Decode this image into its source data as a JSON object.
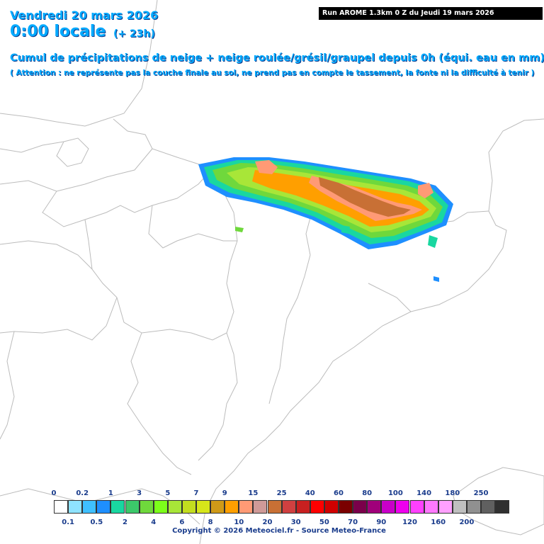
{
  "header": {
    "date": "Vendredi 20 mars 2026",
    "time": "0:00 locale",
    "lead": "(+ 23h)",
    "title": "Cumul de précipitations de neige + neige roulée/grésil/graupel depuis 0h (équi. eau en mm)",
    "warning": "( Attention : ne représente pas la couche finale au sol, ne prend pas en compte le tassement, la fonte ni la difficulté à tenir )"
  },
  "run_info": "Run AROME 1.3km 0 Z du Jeudi 19 mars 2026",
  "legend": {
    "top_labels": [
      "0",
      "0.2",
      "1",
      "3",
      "5",
      "7",
      "9",
      "15",
      "25",
      "40",
      "60",
      "80",
      "100",
      "140",
      "180",
      "250"
    ],
    "bottom_labels": [
      "0.1",
      "0.5",
      "2",
      "4",
      "6",
      "8",
      "10",
      "20",
      "30",
      "50",
      "70",
      "90",
      "120",
      "160",
      "200"
    ],
    "colors": [
      "#ffffff",
      "#8fe3ff",
      "#3fc0ff",
      "#1e8fff",
      "#19d7a0",
      "#3cc86a",
      "#6fd83c",
      "#7cff1a",
      "#a8e638",
      "#c3dd1f",
      "#d6e61a",
      "#cf9a18",
      "#ff9f00",
      "#ff9a75",
      "#cf9a98",
      "#c87035",
      "#d04040",
      "#c82020",
      "#ff0000",
      "#d00000",
      "#7a0000",
      "#7a004a",
      "#a0007a",
      "#c800c8",
      "#ee00ee",
      "#ff40ff",
      "#ff78ff",
      "#ffa0ff",
      "#bfbfbf",
      "#909090",
      "#606060",
      "#303030"
    ]
  },
  "copyright": "Copyright © 2026 Meteociel.fr - Source Meteo-France"
}
